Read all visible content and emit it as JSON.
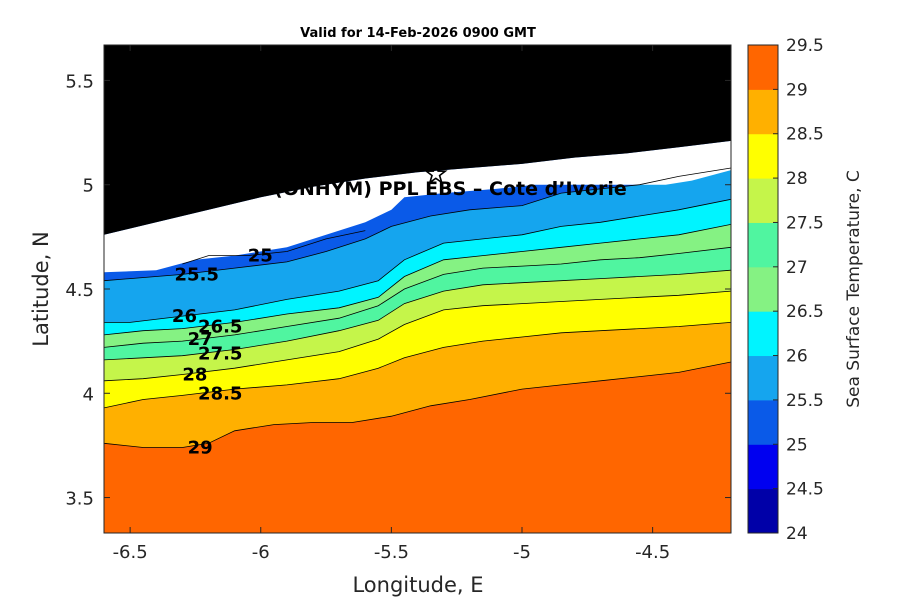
{
  "chart_data": {
    "type": "contour",
    "title": "Valid for 14-Feb-2026 0900 GMT",
    "xlabel": "Longitude, E",
    "ylabel": "Latitude, N",
    "xlim": [
      -6.6,
      -4.2
    ],
    "ylim": [
      3.33,
      5.67
    ],
    "x_ticks": [
      -6.5,
      -6,
      -5.5,
      -5,
      -4.5
    ],
    "x_tick_labels": [
      "-6.5",
      "-6",
      "-5.5",
      "-5",
      "-4.5"
    ],
    "y_ticks": [
      3.5,
      4,
      4.5,
      5,
      5.5
    ],
    "y_tick_labels": [
      "3.5",
      "4",
      "4.5",
      "5",
      "5.5"
    ],
    "site_marker": {
      "symbol": "star",
      "lon": -5.33,
      "lat": 5.05
    },
    "site_label": "(ONHYM) PPL EBS  – Cote d’Ivorie",
    "colorbar": {
      "label": "Sea Surface Temperature, C",
      "range": [
        24,
        29.5
      ],
      "ticks": [
        "24",
        "24.5",
        "25",
        "25.5",
        "26",
        "26.5",
        "27",
        "27.5",
        "28",
        "28.5",
        "29",
        "29.5"
      ],
      "colors": [
        "#0000a8",
        "#0000f0",
        "#0a5ae8",
        "#15a5ee",
        "#00f4ff",
        "#85f283",
        "#50f5a0",
        "#c5f54a",
        "#ffff00",
        "#ffb000",
        "#ff6600",
        "#ff0000"
      ]
    },
    "land_color": "#000000",
    "nodata_color": "#ffffff",
    "isotherms": [
      {
        "level": "25",
        "label_lon": -6.05,
        "label_lat": 4.66,
        "path": [
          [
            -6.3,
            4.62
          ],
          [
            -6.2,
            4.66
          ],
          [
            -6.05,
            4.66
          ],
          [
            -5.9,
            4.68
          ],
          [
            -5.75,
            4.74
          ],
          [
            -5.6,
            4.78
          ]
        ]
      },
      {
        "level": "25.5",
        "label_lon": -6.33,
        "label_lat": 4.57,
        "path": [
          [
            -6.6,
            4.54
          ],
          [
            -6.5,
            4.55
          ],
          [
            -6.3,
            4.57
          ],
          [
            -6.1,
            4.6
          ],
          [
            -5.9,
            4.63
          ],
          [
            -5.75,
            4.68
          ],
          [
            -5.6,
            4.74
          ],
          [
            -5.5,
            4.8
          ],
          [
            -5.35,
            4.85
          ],
          [
            -5.2,
            4.88
          ],
          [
            -5.0,
            4.9
          ],
          [
            -4.85,
            4.96
          ],
          [
            -4.7,
            4.98
          ],
          [
            -4.55,
            5.0
          ],
          [
            -4.4,
            5.04
          ],
          [
            -4.2,
            5.08
          ]
        ]
      },
      {
        "level": "26",
        "label_lon": -6.34,
        "label_lat": 4.37,
        "path": [
          [
            -6.6,
            4.34
          ],
          [
            -6.5,
            4.34
          ],
          [
            -6.3,
            4.37
          ],
          [
            -6.1,
            4.4
          ],
          [
            -5.9,
            4.45
          ],
          [
            -5.7,
            4.49
          ],
          [
            -5.55,
            4.54
          ],
          [
            -5.45,
            4.64
          ],
          [
            -5.3,
            4.72
          ],
          [
            -5.15,
            4.74
          ],
          [
            -5.0,
            4.76
          ],
          [
            -4.85,
            4.8
          ],
          [
            -4.7,
            4.82
          ],
          [
            -4.55,
            4.85
          ],
          [
            -4.4,
            4.88
          ],
          [
            -4.2,
            4.93
          ]
        ]
      },
      {
        "level": "26.5",
        "label_lon": -6.24,
        "label_lat": 4.32,
        "path": [
          [
            -6.6,
            4.28
          ],
          [
            -6.45,
            4.3
          ],
          [
            -6.3,
            4.31
          ],
          [
            -6.1,
            4.34
          ],
          [
            -5.9,
            4.38
          ],
          [
            -5.7,
            4.41
          ],
          [
            -5.55,
            4.46
          ],
          [
            -5.45,
            4.56
          ],
          [
            -5.3,
            4.64
          ],
          [
            -5.15,
            4.66
          ],
          [
            -5.0,
            4.68
          ],
          [
            -4.85,
            4.7
          ],
          [
            -4.7,
            4.72
          ],
          [
            -4.55,
            4.74
          ],
          [
            -4.4,
            4.76
          ],
          [
            -4.2,
            4.81
          ]
        ]
      },
      {
        "level": "27",
        "label_lon": -6.28,
        "label_lat": 4.26,
        "path": [
          [
            -6.6,
            4.22
          ],
          [
            -6.45,
            4.24
          ],
          [
            -6.3,
            4.25
          ],
          [
            -6.1,
            4.28
          ],
          [
            -5.9,
            4.32
          ],
          [
            -5.7,
            4.36
          ],
          [
            -5.55,
            4.42
          ],
          [
            -5.45,
            4.5
          ],
          [
            -5.3,
            4.57
          ],
          [
            -5.15,
            4.6
          ],
          [
            -5.0,
            4.61
          ],
          [
            -4.85,
            4.62
          ],
          [
            -4.7,
            4.64
          ],
          [
            -4.55,
            4.65
          ],
          [
            -4.4,
            4.67
          ],
          [
            -4.2,
            4.7
          ]
        ]
      },
      {
        "level": "27.5",
        "label_lon": -6.24,
        "label_lat": 4.19,
        "path": [
          [
            -6.6,
            4.16
          ],
          [
            -6.45,
            4.17
          ],
          [
            -6.3,
            4.18
          ],
          [
            -6.1,
            4.21
          ],
          [
            -5.9,
            4.25
          ],
          [
            -5.7,
            4.3
          ],
          [
            -5.55,
            4.35
          ],
          [
            -5.45,
            4.43
          ],
          [
            -5.3,
            4.49
          ],
          [
            -5.15,
            4.52
          ],
          [
            -5.0,
            4.53
          ],
          [
            -4.85,
            4.54
          ],
          [
            -4.7,
            4.55
          ],
          [
            -4.55,
            4.56
          ],
          [
            -4.4,
            4.57
          ],
          [
            -4.2,
            4.59
          ]
        ]
      },
      {
        "level": "28",
        "label_lon": -6.3,
        "label_lat": 4.09,
        "path": [
          [
            -6.6,
            4.06
          ],
          [
            -6.45,
            4.07
          ],
          [
            -6.3,
            4.09
          ],
          [
            -6.1,
            4.12
          ],
          [
            -5.9,
            4.16
          ],
          [
            -5.7,
            4.2
          ],
          [
            -5.55,
            4.26
          ],
          [
            -5.45,
            4.33
          ],
          [
            -5.3,
            4.4
          ],
          [
            -5.15,
            4.42
          ],
          [
            -5.0,
            4.43
          ],
          [
            -4.85,
            4.44
          ],
          [
            -4.7,
            4.45
          ],
          [
            -4.55,
            4.46
          ],
          [
            -4.4,
            4.47
          ],
          [
            -4.2,
            4.49
          ]
        ]
      },
      {
        "level": "28.5",
        "label_lon": -6.24,
        "label_lat": 4.0,
        "path": [
          [
            -6.6,
            3.93
          ],
          [
            -6.45,
            3.97
          ],
          [
            -6.3,
            3.99
          ],
          [
            -6.1,
            4.02
          ],
          [
            -5.9,
            4.04
          ],
          [
            -5.7,
            4.07
          ],
          [
            -5.55,
            4.12
          ],
          [
            -5.45,
            4.17
          ],
          [
            -5.3,
            4.22
          ],
          [
            -5.15,
            4.25
          ],
          [
            -5.0,
            4.27
          ],
          [
            -4.85,
            4.29
          ],
          [
            -4.7,
            4.3
          ],
          [
            -4.55,
            4.31
          ],
          [
            -4.4,
            4.32
          ],
          [
            -4.2,
            4.34
          ]
        ]
      },
      {
        "level": "29",
        "label_lon": -6.28,
        "label_lat": 3.74,
        "path": [
          [
            -6.6,
            3.76
          ],
          [
            -6.45,
            3.74
          ],
          [
            -6.3,
            3.74
          ],
          [
            -6.2,
            3.76
          ],
          [
            -6.1,
            3.82
          ],
          [
            -5.95,
            3.85
          ],
          [
            -5.8,
            3.86
          ],
          [
            -5.65,
            3.86
          ],
          [
            -5.5,
            3.89
          ],
          [
            -5.35,
            3.94
          ],
          [
            -5.2,
            3.97
          ],
          [
            -5.0,
            4.02
          ],
          [
            -4.85,
            4.04
          ],
          [
            -4.7,
            4.06
          ],
          [
            -4.55,
            4.08
          ],
          [
            -4.4,
            4.1
          ],
          [
            -4.2,
            4.15
          ]
        ]
      }
    ],
    "coastline": [
      [
        -6.6,
        4.76
      ],
      [
        -6.4,
        4.82
      ],
      [
        -6.2,
        4.88
      ],
      [
        -6.0,
        4.94
      ],
      [
        -5.8,
        4.99
      ],
      [
        -5.6,
        5.03
      ],
      [
        -5.4,
        5.06
      ],
      [
        -5.2,
        5.08
      ],
      [
        -5.0,
        5.1
      ],
      [
        -4.8,
        5.13
      ],
      [
        -4.6,
        5.15
      ],
      [
        -4.4,
        5.18
      ],
      [
        -4.2,
        5.21
      ]
    ],
    "nodata_lower_edge": [
      [
        -6.6,
        4.58
      ],
      [
        -6.4,
        4.59
      ],
      [
        -6.25,
        4.64
      ],
      [
        -6.1,
        4.66
      ],
      [
        -5.9,
        4.7
      ],
      [
        -5.75,
        4.76
      ],
      [
        -5.6,
        4.82
      ],
      [
        -5.5,
        4.88
      ],
      [
        -5.45,
        4.94
      ],
      [
        -5.3,
        4.96
      ],
      [
        -5.1,
        4.98
      ],
      [
        -4.95,
        5.0
      ],
      [
        -4.75,
        5.0
      ],
      [
        -4.6,
        5.0
      ],
      [
        -4.45,
        5.0
      ],
      [
        -4.35,
        5.02
      ],
      [
        -4.2,
        5.07
      ]
    ]
  }
}
